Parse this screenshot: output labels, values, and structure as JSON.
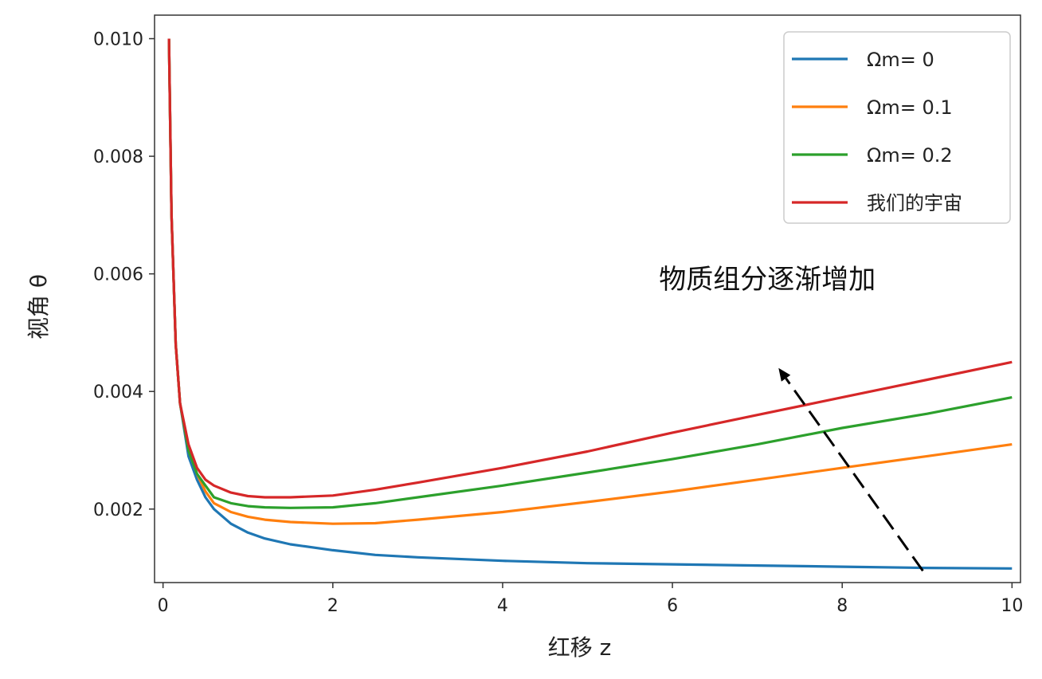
{
  "chart_data": {
    "type": "line",
    "xlabel": "红移 z",
    "ylabel": "视角 θ",
    "xlim": [
      -0.1,
      10.1
    ],
    "ylim": [
      0.00075,
      0.0104
    ],
    "xticks": [
      0,
      2,
      4,
      6,
      8,
      10
    ],
    "xtick_labels": [
      "0",
      "2",
      "4",
      "6",
      "8",
      "10"
    ],
    "yticks": [
      0.002,
      0.004,
      0.006,
      0.008,
      0.01
    ],
    "ytick_labels": [
      "0.002",
      "0.004",
      "0.006",
      "0.008",
      "0.010"
    ],
    "grid": false,
    "legend_position": "top-right",
    "x": [
      0.07,
      0.1,
      0.15,
      0.2,
      0.3,
      0.4,
      0.5,
      0.6,
      0.8,
      1.0,
      1.2,
      1.5,
      2.0,
      2.5,
      3.0,
      4.0,
      5.0,
      6.0,
      7.0,
      8.0,
      9.0,
      10.0
    ],
    "series": [
      {
        "name": "Ωm= 0",
        "color": "#1f77b4",
        "values": [
          0.01,
          0.007,
          0.0048,
          0.0038,
          0.0029,
          0.0025,
          0.0022,
          0.002,
          0.00175,
          0.0016,
          0.0015,
          0.0014,
          0.0013,
          0.00122,
          0.00118,
          0.00112,
          0.00108,
          0.00106,
          0.00104,
          0.00102,
          0.001,
          0.00099
        ]
      },
      {
        "name": "Ωm= 0.1",
        "color": "#ff7f0e",
        "values": [
          0.01,
          0.007,
          0.0048,
          0.0038,
          0.003,
          0.0026,
          0.0023,
          0.0021,
          0.00195,
          0.00187,
          0.00182,
          0.00178,
          0.00175,
          0.00176,
          0.00182,
          0.00195,
          0.00212,
          0.0023,
          0.0025,
          0.0027,
          0.0029,
          0.0031
        ]
      },
      {
        "name": "Ωm= 0.2",
        "color": "#2ca02c",
        "values": [
          0.01,
          0.007,
          0.0048,
          0.0038,
          0.003,
          0.0026,
          0.0024,
          0.0022,
          0.0021,
          0.00205,
          0.00203,
          0.00202,
          0.00203,
          0.0021,
          0.0022,
          0.0024,
          0.00262,
          0.00285,
          0.0031,
          0.00338,
          0.00362,
          0.0039
        ]
      },
      {
        "name": "我们的宇宙",
        "color": "#d62728",
        "values": [
          0.01,
          0.007,
          0.0048,
          0.0038,
          0.0031,
          0.0027,
          0.0025,
          0.0024,
          0.00228,
          0.00222,
          0.0022,
          0.0022,
          0.00223,
          0.00233,
          0.00245,
          0.0027,
          0.00298,
          0.0033,
          0.0036,
          0.0039,
          0.0042,
          0.0045
        ]
      }
    ],
    "annotation": {
      "text": "物质组分逐渐增加",
      "arrow_from": [
        8.95,
        0.00095
      ],
      "arrow_to": [
        7.25,
        0.0044
      ]
    }
  }
}
